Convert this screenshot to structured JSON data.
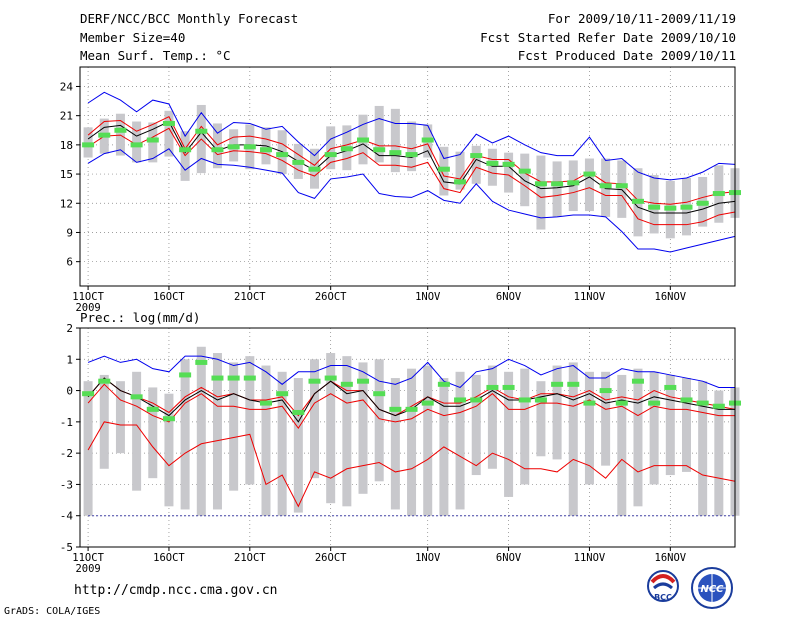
{
  "header": {
    "title": "DERF/NCC/BCC Monthly Forecast",
    "member_size": "Member Size=40",
    "variable": "Mean Surf. Temp.: °C",
    "period": "For 2009/10/11-2009/11/19",
    "started": "Fcst Started Refer Date 2009/10/10",
    "produced": "Fcst Produced Date 2009/10/11"
  },
  "footer": {
    "url": "http://cmdp.ncc.cma.gov.cn",
    "grads": "GrADS: COLA/IGES",
    "logo_bcc": "BCC",
    "logo_ncc": "NCC"
  },
  "colors": {
    "max": "#0000ee",
    "min": "#ee0000",
    "mean": "#000000",
    "obs": "#55dd55",
    "box": "#c8c8cc",
    "grid": "#808080"
  },
  "chart_data": [
    {
      "type": "line",
      "title": "Mean Surf. Temp.: °C",
      "ylim": [
        3.5,
        26
      ],
      "yticks": [
        6,
        9,
        12,
        15,
        18,
        21,
        24
      ],
      "xlim": [
        0.5,
        41
      ],
      "xticks": [
        {
          "day": 1,
          "label": "11OCT",
          "sub": "2009"
        },
        {
          "day": 6,
          "label": "16OCT"
        },
        {
          "day": 11,
          "label": "21OCT"
        },
        {
          "day": 16,
          "label": "26OCT"
        },
        {
          "day": 22,
          "label": "1NOV"
        },
        {
          "day": 27,
          "label": "6NOV"
        },
        {
          "day": 32,
          "label": "11NOV"
        },
        {
          "day": 37,
          "label": "16NOV"
        }
      ],
      "series": [
        {
          "name": "max",
          "values": [
            22.3,
            23.4,
            22.6,
            21.4,
            22.6,
            22.2,
            18.9,
            21.3,
            19.2,
            20.3,
            20.2,
            19.6,
            19.9,
            18.3,
            16.9,
            18.6,
            19.3,
            20.1,
            20.7,
            20.2,
            20.2,
            20.0,
            16.6,
            17.0,
            19.1,
            18.2,
            18.9,
            18.0,
            17.2,
            16.9,
            16.9,
            18.8,
            16.4,
            16.6,
            15.2,
            14.6,
            14.4,
            14.6,
            15.2,
            16.1,
            16.0
          ]
        },
        {
          "name": "box_top",
          "values": [
            19.8,
            20.7,
            21.2,
            20.4,
            20.3,
            21.5,
            19.4,
            22.1,
            20.2,
            19.6,
            20.1,
            19.8,
            19.5,
            18.1,
            17.6,
            19.9,
            20.0,
            21.1,
            22.0,
            21.7,
            20.4,
            20.1,
            17.8,
            17.3,
            17.9,
            17.6,
            17.2,
            17.1,
            16.9,
            16.3,
            16.4,
            16.6,
            16.6,
            16.4,
            15.6,
            14.9,
            14.3,
            14.6,
            14.7,
            15.9,
            15.6
          ]
        },
        {
          "name": "box_bottom",
          "values": [
            16.7,
            17.1,
            16.9,
            16.2,
            16.2,
            16.8,
            14.3,
            15.1,
            15.6,
            16.3,
            15.5,
            16.0,
            15.0,
            14.5,
            13.5,
            15.5,
            15.4,
            16.0,
            16.2,
            15.2,
            15.3,
            16.7,
            12.8,
            13.4,
            14.0,
            13.8,
            13.1,
            11.7,
            9.3,
            10.6,
            11.2,
            11.2,
            10.6,
            10.5,
            8.6,
            8.9,
            8.4,
            8.7,
            9.6,
            10.0,
            10.5
          ]
        },
        {
          "name": "upper",
          "values": [
            19.0,
            20.4,
            20.5,
            19.4,
            20.1,
            20.9,
            17.6,
            19.9,
            18.0,
            18.8,
            18.9,
            18.6,
            18.1,
            17.0,
            15.9,
            17.6,
            18.0,
            18.5,
            17.9,
            17.9,
            17.6,
            18.1,
            14.8,
            14.5,
            16.9,
            16.5,
            16.5,
            15.1,
            14.2,
            14.2,
            14.3,
            15.2,
            14.1,
            14.0,
            12.3,
            12.0,
            11.9,
            12.1,
            12.6,
            13.0,
            13.2
          ]
        },
        {
          "name": "mean",
          "values": [
            18.6,
            19.8,
            20.0,
            18.9,
            19.6,
            20.4,
            17.2,
            19.3,
            17.4,
            18.0,
            18.0,
            17.9,
            17.3,
            16.3,
            15.4,
            16.9,
            17.4,
            18.1,
            16.9,
            16.9,
            16.7,
            17.4,
            14.2,
            14.0,
            16.5,
            15.8,
            15.8,
            14.3,
            13.5,
            13.6,
            13.8,
            14.7,
            13.5,
            13.4,
            11.6,
            11.0,
            11.0,
            11.0,
            11.4,
            12.0,
            12.2
          ]
        },
        {
          "name": "lower",
          "values": [
            17.8,
            18.9,
            19.0,
            18.0,
            18.8,
            19.7,
            16.9,
            18.6,
            17.0,
            17.4,
            17.3,
            17.1,
            16.4,
            15.4,
            14.8,
            16.2,
            16.6,
            17.2,
            15.9,
            15.9,
            15.7,
            16.2,
            13.5,
            13.1,
            15.7,
            15.1,
            14.9,
            13.8,
            12.6,
            12.8,
            13.1,
            13.6,
            12.8,
            12.8,
            10.4,
            9.8,
            9.8,
            9.8,
            10.1,
            10.8,
            11.1
          ]
        },
        {
          "name": "min",
          "values": [
            16.1,
            17.1,
            17.5,
            16.2,
            16.6,
            17.6,
            15.4,
            16.6,
            16.0,
            15.9,
            15.7,
            15.4,
            15.1,
            13.1,
            12.5,
            14.5,
            14.7,
            15.0,
            13.0,
            12.7,
            12.6,
            13.3,
            12.3,
            12.0,
            14.0,
            12.2,
            11.3,
            10.9,
            10.5,
            10.6,
            10.8,
            10.8,
            10.6,
            9.1,
            7.3,
            7.3,
            7.0,
            7.4,
            7.8,
            8.2,
            8.6
          ]
        },
        {
          "name": "obs",
          "values": [
            18.0,
            19.0,
            19.5,
            18.0,
            18.5,
            20.2,
            17.5,
            19.4,
            17.5,
            17.8,
            17.8,
            17.5,
            17.0,
            16.2,
            15.5,
            17.0,
            17.6,
            18.5,
            17.5,
            17.2,
            17.0,
            18.5,
            15.5,
            14.2,
            16.9,
            16.1,
            16.0,
            15.3,
            14.0,
            14.0,
            14.1,
            15.0,
            13.8,
            13.8,
            12.2,
            11.6,
            11.5,
            11.6,
            12.0,
            13.0,
            13.1
          ]
        }
      ]
    },
    {
      "type": "line",
      "title": "Prec.: log(mm/d)",
      "ylim": [
        -5,
        2
      ],
      "yticks": [
        -5,
        -4,
        -3,
        -2,
        -1,
        0,
        1,
        2
      ],
      "xlim": [
        0.5,
        41
      ],
      "xticks": [
        {
          "day": 1,
          "label": "11OCT",
          "sub": "2009"
        },
        {
          "day": 6,
          "label": "16OCT"
        },
        {
          "day": 11,
          "label": "21OCT"
        },
        {
          "day": 16,
          "label": "26OCT"
        },
        {
          "day": 22,
          "label": "1NOV"
        },
        {
          "day": 27,
          "label": "6NOV"
        },
        {
          "day": 32,
          "label": "11NOV"
        },
        {
          "day": 37,
          "label": "16NOV"
        }
      ],
      "series": [
        {
          "name": "max",
          "values": [
            0.9,
            1.1,
            0.9,
            1.0,
            0.7,
            0.6,
            1.1,
            1.1,
            1.0,
            0.8,
            0.9,
            0.6,
            0.2,
            0.6,
            0.6,
            0.8,
            0.8,
            0.6,
            0.3,
            0.2,
            0.4,
            0.9,
            0.3,
            0.1,
            0.6,
            0.7,
            1.0,
            0.8,
            0.5,
            0.7,
            0.8,
            0.4,
            0.4,
            0.7,
            0.6,
            0.6,
            0.5,
            0.4,
            0.3,
            0.1,
            0.1
          ]
        },
        {
          "name": "box_top",
          "values": [
            0.3,
            0.5,
            0.3,
            0.6,
            0.1,
            -0.1,
            1.0,
            1.4,
            1.2,
            0.9,
            1.1,
            0.8,
            0.6,
            0.4,
            1.0,
            1.2,
            1.1,
            0.9,
            1.0,
            0.4,
            0.7,
            0.8,
            0.4,
            0.6,
            0.5,
            0.8,
            0.6,
            0.7,
            0.3,
            0.8,
            0.9,
            0.6,
            0.6,
            0.5,
            0.7,
            0.6,
            0.5,
            0.4,
            0.3,
            0.0,
            0.1
          ]
        },
        {
          "name": "box_bottom",
          "values": [
            -4.0,
            -2.5,
            -2.0,
            -3.2,
            -2.8,
            -3.7,
            -3.8,
            -4.0,
            -3.8,
            -3.2,
            -3.0,
            -4.0,
            -4.0,
            -3.9,
            -2.8,
            -3.6,
            -3.7,
            -3.3,
            -2.9,
            -3.8,
            -4.0,
            -4.0,
            -4.0,
            -3.8,
            -2.7,
            -2.5,
            -3.4,
            -3.0,
            -2.1,
            -2.2,
            -4.0,
            -3.0,
            -2.4,
            -4.0,
            -3.7,
            -3.0,
            -2.7,
            -2.6,
            -4.0,
            -4.0,
            -4.0
          ]
        },
        {
          "name": "upper",
          "values": [
            -0.2,
            0.4,
            0.0,
            -0.2,
            -0.4,
            -0.7,
            -0.2,
            0.1,
            -0.2,
            -0.1,
            -0.3,
            -0.3,
            -0.2,
            -0.8,
            -0.1,
            0.3,
            0.0,
            0.0,
            -0.6,
            -0.8,
            -0.5,
            -0.2,
            -0.4,
            -0.4,
            -0.2,
            0.1,
            -0.2,
            -0.3,
            -0.1,
            -0.1,
            -0.2,
            0.0,
            -0.3,
            -0.2,
            -0.3,
            0.0,
            -0.2,
            -0.3,
            -0.4,
            -0.5,
            -0.6
          ]
        },
        {
          "name": "mean",
          "values": [
            -0.2,
            0.4,
            0.0,
            -0.2,
            -0.5,
            -0.8,
            -0.3,
            0.0,
            -0.3,
            -0.1,
            -0.3,
            -0.4,
            -0.3,
            -1.0,
            -0.1,
            0.3,
            -0.1,
            0.0,
            -0.6,
            -0.8,
            -0.6,
            -0.2,
            -0.5,
            -0.5,
            -0.3,
            0.0,
            -0.3,
            -0.3,
            -0.2,
            -0.1,
            -0.3,
            -0.1,
            -0.4,
            -0.3,
            -0.4,
            -0.2,
            -0.3,
            -0.4,
            -0.5,
            -0.6,
            -0.6
          ]
        },
        {
          "name": "lower",
          "values": [
            -0.4,
            0.2,
            -0.3,
            -0.5,
            -0.8,
            -1.0,
            -0.4,
            -0.1,
            -0.5,
            -0.5,
            -0.6,
            -0.6,
            -0.5,
            -1.2,
            -0.4,
            -0.1,
            -0.4,
            -0.3,
            -0.9,
            -1.0,
            -0.9,
            -0.6,
            -0.8,
            -0.7,
            -0.5,
            -0.1,
            -0.6,
            -0.6,
            -0.4,
            -0.4,
            -0.5,
            -0.3,
            -0.6,
            -0.5,
            -0.8,
            -0.5,
            -0.6,
            -0.6,
            -0.7,
            -0.8,
            -0.8
          ]
        },
        {
          "name": "min",
          "values": [
            -1.9,
            -1.0,
            -1.1,
            -1.1,
            -1.8,
            -2.4,
            -2.0,
            -1.7,
            -1.6,
            -1.5,
            -1.4,
            -3.0,
            -2.7,
            -3.7,
            -2.6,
            -2.8,
            -2.5,
            -2.4,
            -2.3,
            -2.6,
            -2.5,
            -2.2,
            -1.8,
            -2.1,
            -2.4,
            -2.0,
            -2.2,
            -2.5,
            -2.5,
            -2.6,
            -2.2,
            -2.4,
            -2.8,
            -2.2,
            -2.6,
            -2.4,
            -2.4,
            -2.4,
            -2.7,
            -2.8,
            -2.9
          ]
        },
        {
          "name": "obs",
          "values": [
            -0.1,
            0.3,
            null,
            -0.2,
            -0.6,
            -0.9,
            0.5,
            0.9,
            0.4,
            0.4,
            0.4,
            -0.4,
            -0.1,
            -0.7,
            0.3,
            0.4,
            0.2,
            0.3,
            -0.1,
            -0.6,
            -0.6,
            -0.4,
            0.2,
            -0.3,
            -0.3,
            0.1,
            0.1,
            -0.3,
            -0.3,
            0.2,
            0.2,
            -0.4,
            0.0,
            -0.4,
            0.3,
            -0.4,
            0.1,
            -0.3,
            -0.4,
            -0.5,
            -0.4
          ]
        },
        {
          "name": "floor",
          "values": [
            -4.0,
            -4.0
          ]
        }
      ]
    }
  ]
}
